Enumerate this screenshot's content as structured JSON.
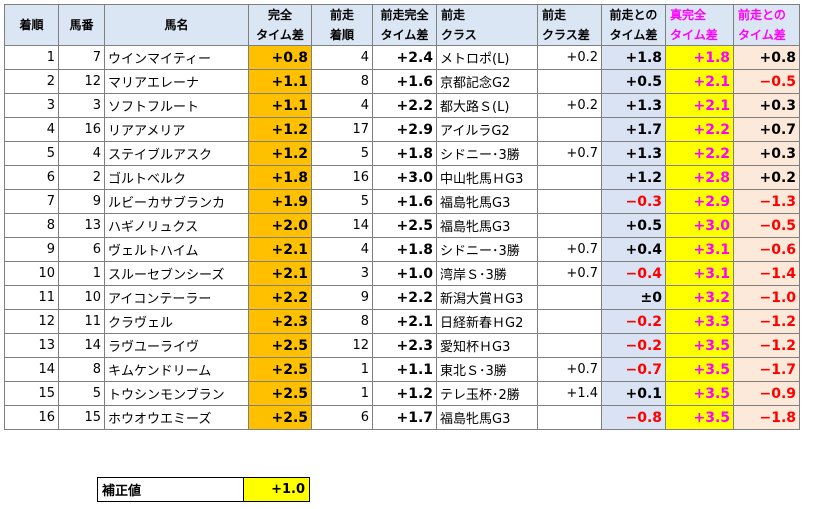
{
  "headers": {
    "rank": [
      "着順"
    ],
    "horse_no": [
      "馬番"
    ],
    "name": [
      "馬名"
    ],
    "full_time": [
      "完全",
      "タイム差"
    ],
    "prev_rank": [
      "前走",
      "着順"
    ],
    "prev_full": [
      "前走完全",
      "タイム差"
    ],
    "prev_class": [
      "前走",
      "クラス"
    ],
    "prev_class_diff": [
      "前走",
      "クラス差"
    ],
    "prev_time_diff": [
      "前走との",
      "タイム差"
    ],
    "true_full": [
      "真完全",
      "タイム差"
    ],
    "prev_diff2": [
      "前走との",
      "タイム差"
    ]
  },
  "rows": [
    {
      "rank": "1",
      "no": "7",
      "name": "ウインマイティー",
      "full": "+0.8",
      "prank": "4",
      "pfull": "+2.4",
      "pclass": "メトロポ(L)",
      "pcdiff": "+0.2",
      "ptdiff": "+1.8",
      "tfull": "+1.8",
      "pdiff2": "+0.8"
    },
    {
      "rank": "2",
      "no": "12",
      "name": "マリアエレーナ",
      "full": "+1.1",
      "prank": "8",
      "pfull": "+1.6",
      "pclass": "京都記念G2",
      "pcdiff": "",
      "ptdiff": "+0.5",
      "tfull": "+2.1",
      "pdiff2": "−0.5"
    },
    {
      "rank": "3",
      "no": "3",
      "name": "ソフトフルート",
      "full": "+1.1",
      "prank": "4",
      "pfull": "+2.2",
      "pclass": "都大路Ｓ(L)",
      "pcdiff": "+0.2",
      "ptdiff": "+1.3",
      "tfull": "+2.1",
      "pdiff2": "+0.3"
    },
    {
      "rank": "4",
      "no": "16",
      "name": "リアアメリア",
      "full": "+1.2",
      "prank": "17",
      "pfull": "+2.9",
      "pclass": "アイルラG2",
      "pcdiff": "",
      "ptdiff": "+1.7",
      "tfull": "+2.2",
      "pdiff2": "+0.7"
    },
    {
      "rank": "5",
      "no": "4",
      "name": "ステイブルアスク",
      "full": "+1.2",
      "prank": "5",
      "pfull": "+1.8",
      "pclass": "シドニー･3勝",
      "pcdiff": "+0.7",
      "ptdiff": "+1.3",
      "tfull": "+2.2",
      "pdiff2": "+0.3"
    },
    {
      "rank": "6",
      "no": "2",
      "name": "ゴルトベルク",
      "full": "+1.8",
      "prank": "16",
      "pfull": "+3.0",
      "pclass": "中山牝馬ＨG3",
      "pcdiff": "",
      "ptdiff": "+1.2",
      "tfull": "+2.8",
      "pdiff2": "+0.2"
    },
    {
      "rank": "7",
      "no": "9",
      "name": "ルビーカサブランカ",
      "full": "+1.9",
      "prank": "5",
      "pfull": "+1.6",
      "pclass": "福島牝馬G3",
      "pcdiff": "",
      "ptdiff": "−0.3",
      "tfull": "+2.9",
      "pdiff2": "−1.3"
    },
    {
      "rank": "8",
      "no": "13",
      "name": "ハギノリュクス",
      "full": "+2.0",
      "prank": "14",
      "pfull": "+2.5",
      "pclass": "福島牝馬G3",
      "pcdiff": "",
      "ptdiff": "+0.5",
      "tfull": "+3.0",
      "pdiff2": "−0.5"
    },
    {
      "rank": "9",
      "no": "6",
      "name": "ヴェルトハイム",
      "full": "+2.1",
      "prank": "4",
      "pfull": "+1.8",
      "pclass": "シドニー･3勝",
      "pcdiff": "+0.7",
      "ptdiff": "+0.4",
      "tfull": "+3.1",
      "pdiff2": "−0.6"
    },
    {
      "rank": "10",
      "no": "1",
      "name": "スルーセブンシーズ",
      "full": "+2.1",
      "prank": "3",
      "pfull": "+1.0",
      "pclass": "湾岸Ｓ･3勝",
      "pcdiff": "+0.7",
      "ptdiff": "−0.4",
      "tfull": "+3.1",
      "pdiff2": "−1.4"
    },
    {
      "rank": "11",
      "no": "10",
      "name": "アイコンテーラー",
      "full": "+2.2",
      "prank": "9",
      "pfull": "+2.2",
      "pclass": "新潟大賞ＨG3",
      "pcdiff": "",
      "ptdiff": "±0",
      "tfull": "+3.2",
      "pdiff2": "−1.0"
    },
    {
      "rank": "12",
      "no": "11",
      "name": "クラヴェル",
      "full": "+2.3",
      "prank": "8",
      "pfull": "+2.1",
      "pclass": "日経新春ＨG2",
      "pcdiff": "",
      "ptdiff": "−0.2",
      "tfull": "+3.3",
      "pdiff2": "−1.2"
    },
    {
      "rank": "13",
      "no": "14",
      "name": "ラヴユーライヴ",
      "full": "+2.5",
      "prank": "12",
      "pfull": "+2.3",
      "pclass": "愛知杯ＨG3",
      "pcdiff": "",
      "ptdiff": "−0.2",
      "tfull": "+3.5",
      "pdiff2": "−1.2"
    },
    {
      "rank": "14",
      "no": "8",
      "name": "キムケンドリーム",
      "full": "+2.5",
      "prank": "1",
      "pfull": "+1.1",
      "pclass": "東北Ｓ･3勝",
      "pcdiff": "+0.7",
      "ptdiff": "−0.7",
      "tfull": "+3.5",
      "pdiff2": "−1.7"
    },
    {
      "rank": "15",
      "no": "5",
      "name": "トウシンモンブラン",
      "full": "+2.5",
      "prank": "1",
      "pfull": "+1.2",
      "pclass": "テレ玉杯･2勝",
      "pcdiff": "+1.4",
      "ptdiff": "+0.1",
      "tfull": "+3.5",
      "pdiff2": "−0.9"
    },
    {
      "rank": "16",
      "no": "15",
      "name": "ホウオウエミーズ",
      "full": "+2.5",
      "prank": "6",
      "pfull": "+1.7",
      "pclass": "福島牝馬G3",
      "pcdiff": "",
      "ptdiff": "−0.8",
      "tfull": "+3.5",
      "pdiff2": "−1.8"
    }
  ],
  "correction": {
    "label": "補正値",
    "value": "+1.0"
  },
  "colors": {
    "header_bg": "#dbe6f4",
    "orange": "#ffc000",
    "lavender": "#dae3f3",
    "yellow": "#ffff00",
    "peach": "#fde9d9",
    "pink_text": "#ff00ff",
    "negative": "#ff0000"
  }
}
